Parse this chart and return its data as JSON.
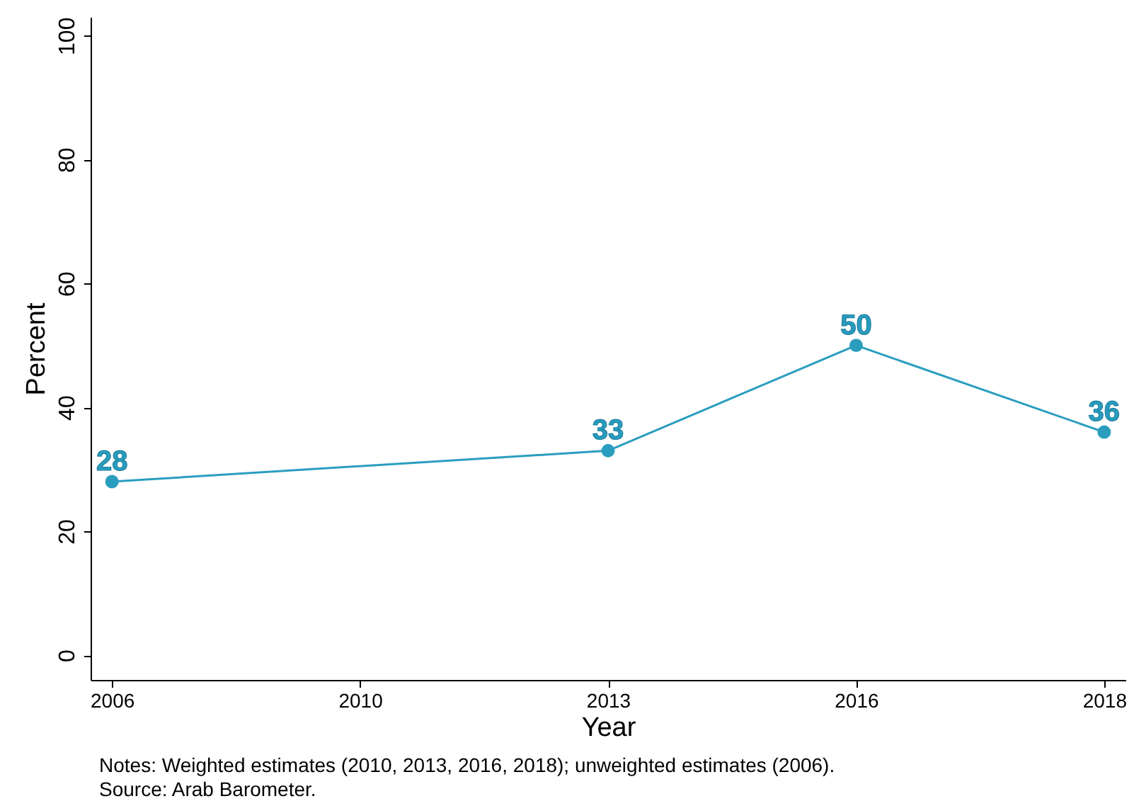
{
  "chart_data": {
    "type": "line",
    "xlabel": "Year",
    "ylabel": "Percent",
    "categories": [
      "2006",
      "2010",
      "2013",
      "2016",
      "2018"
    ],
    "series": [
      {
        "color": "#2a9dbf",
        "values": [
          28,
          null,
          33,
          50,
          36
        ]
      }
    ],
    "ylim": [
      -4,
      103
    ],
    "yticks": [
      0,
      20,
      40,
      60,
      80,
      100
    ],
    "grid": false,
    "marker": "circle",
    "line_style": "solid",
    "data_labels": true,
    "annotations": [
      "Notes: Weighted estimates (2010, 2013, 2016, 2018); unweighted estimates (2006).",
      "Source: Arab Barometer."
    ]
  }
}
